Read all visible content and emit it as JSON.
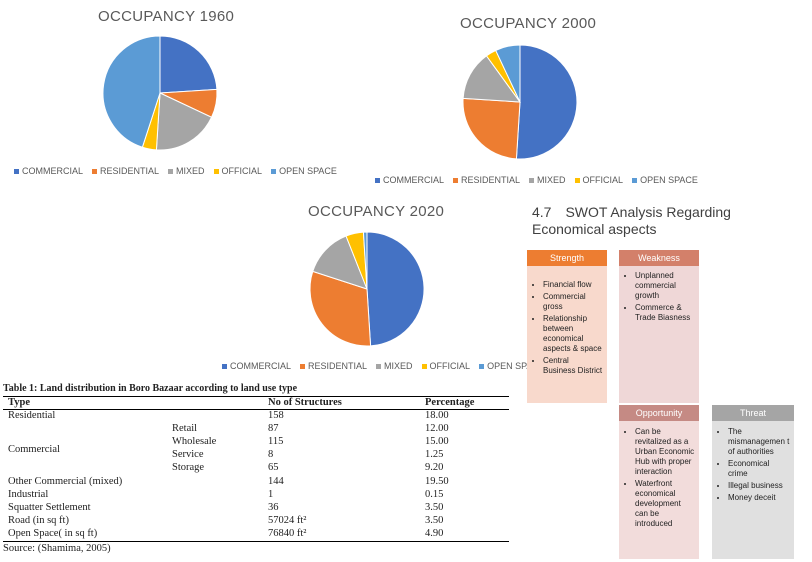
{
  "charts": [
    {
      "id": "c1960",
      "title": "OCCUPANCY 1960",
      "cx": 160,
      "cy": 93,
      "r": 57,
      "slices": [
        {
          "label": "COMMERCIAL",
          "value": 24,
          "color": "#4472C4"
        },
        {
          "label": "RESIDENTIAL",
          "value": 8,
          "color": "#ED7D31"
        },
        {
          "label": "MIXED",
          "value": 19,
          "color": "#A5A5A5"
        },
        {
          "label": "OFFICIAL",
          "value": 4,
          "color": "#FFC000"
        },
        {
          "label": "OPEN SPACE",
          "value": 45,
          "color": "#5B9BD5"
        }
      ]
    },
    {
      "id": "c2000",
      "title": "OCCUPANCY 2000",
      "cx": 520,
      "cy": 102,
      "r": 57,
      "slices": [
        {
          "label": "COMMERCIAL",
          "value": 51,
          "color": "#4472C4"
        },
        {
          "label": "RESIDENTIAL",
          "value": 25,
          "color": "#ED7D31"
        },
        {
          "label": "MIXED",
          "value": 14,
          "color": "#A5A5A5"
        },
        {
          "label": "OFFICIAL",
          "value": 3,
          "color": "#FFC000"
        },
        {
          "label": "OPEN SPACE",
          "value": 7,
          "color": "#5B9BD5"
        }
      ]
    },
    {
      "id": "c2020",
      "title": "OCCUPANCY 2020",
      "cx": 367,
      "cy": 289,
      "r": 57,
      "slices": [
        {
          "label": "COMMERCIAL",
          "value": 49,
          "color": "#4472C4"
        },
        {
          "label": "RESIDENTIAL",
          "value": 31,
          "color": "#ED7D31"
        },
        {
          "label": "MIXED",
          "value": 14,
          "color": "#A5A5A5"
        },
        {
          "label": "OFFICIAL",
          "value": 5,
          "color": "#FFC000"
        },
        {
          "label": "OPEN SPACE",
          "value": 1,
          "color": "#5B9BD5"
        }
      ]
    }
  ],
  "swot": {
    "number": "4.7",
    "heading_line1": "SWOT Analysis Regarding",
    "heading_line2": "Economical aspects",
    "strength": {
      "title": "Strength",
      "items": [
        "Financial flow",
        "Commercial gross",
        "Relationship between economical aspects & space",
        "Central Business District"
      ]
    },
    "weakness": {
      "title": "Weakness",
      "items": [
        "Unplanned commercial growth",
        "Commerce & Trade Biasness"
      ]
    },
    "opportunity": {
      "title": "Opportunity",
      "items": [
        "Can be revitalized as a Urban Economic Hub with proper interaction",
        "Waterfront economical development can be introduced"
      ]
    },
    "threat": {
      "title": "Threat",
      "items": [
        "The mismanagemen t of authorities",
        "Economical crime",
        "Illegal business",
        "Money deceit"
      ]
    }
  },
  "table": {
    "caption": "Table 1: Land distribution in Boro Bazaar according to land use type",
    "headers": {
      "type": "Type",
      "structures": "No of Structures",
      "percentage": "Percentage"
    },
    "residential": {
      "type": "Residential",
      "structures": "158",
      "percentage": "18.00"
    },
    "commercial_label": "Commercial",
    "commercial_sub": [
      {
        "sub": "Retail",
        "structures": "87",
        "percentage": "12.00"
      },
      {
        "sub": "Wholesale",
        "structures": "115",
        "percentage": "15.00"
      },
      {
        "sub": "Service",
        "structures": "8",
        "percentage": "1.25"
      },
      {
        "sub": "Storage",
        "structures": "65",
        "percentage": "9.20"
      }
    ],
    "rows_after": [
      {
        "type": "Other Commercial (mixed)",
        "structures": "144",
        "percentage": "19.50"
      },
      {
        "type": "Industrial",
        "structures": "1",
        "percentage": "0.15"
      },
      {
        "type": "Squatter Settlement",
        "structures": "36",
        "percentage": "3.50"
      },
      {
        "type": "Road (in sq ft)",
        "structures": "57024 ft²",
        "percentage": "3.50"
      },
      {
        "type": "Open Space( in sq ft)",
        "structures": "76840 ft²",
        "percentage": "4.90"
      }
    ],
    "source": "Source: (Shamima, 2005)"
  }
}
